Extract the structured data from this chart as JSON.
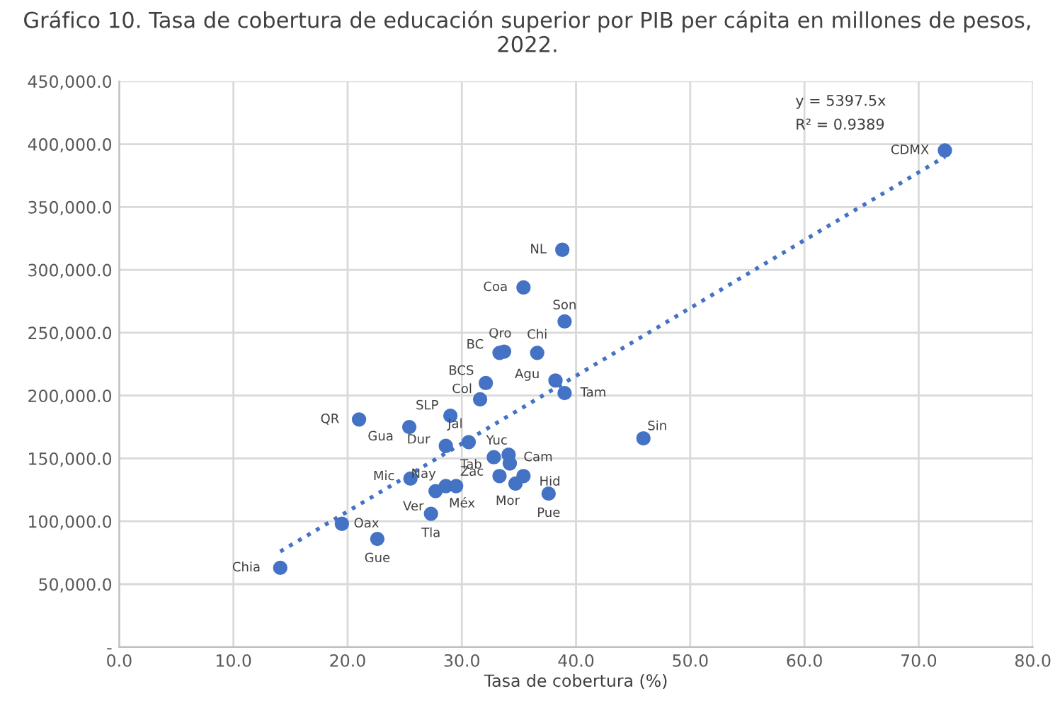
{
  "chart_data": {
    "type": "scatter",
    "title": "Gráfico 10. Tasa de cobertura de educación superior por PIB per cápita en millones de pesos, 2022.",
    "xlabel": "Tasa de cobertura (%)",
    "xlim": [
      0,
      80
    ],
    "xticks": [
      {
        "value": 0,
        "label": "0.0"
      },
      {
        "value": 10,
        "label": "10.0"
      },
      {
        "value": 20,
        "label": "20.0"
      },
      {
        "value": 30,
        "label": "30.0"
      },
      {
        "value": 40,
        "label": "40.0"
      },
      {
        "value": 50,
        "label": "50.0"
      },
      {
        "value": 60,
        "label": "60.0"
      },
      {
        "value": 70,
        "label": "70.0"
      },
      {
        "value": 80,
        "label": "80.0"
      }
    ],
    "ylim": [
      0,
      450000
    ],
    "yticks": [
      {
        "value": 0,
        "label": "-"
      },
      {
        "value": 50000,
        "label": "50,000.0"
      },
      {
        "value": 100000,
        "label": "100,000.0"
      },
      {
        "value": 150000,
        "label": "150,000.0"
      },
      {
        "value": 200000,
        "label": "200,000.0"
      },
      {
        "value": 250000,
        "label": "250,000.0"
      },
      {
        "value": 300000,
        "label": "300,000.0"
      },
      {
        "value": 350000,
        "label": "350,000.0"
      },
      {
        "value": 400000,
        "label": "400,000.0"
      },
      {
        "value": 450000,
        "label": "450,000.0"
      }
    ],
    "grid": true,
    "legend": false,
    "series": [
      {
        "color": "#4472c4",
        "marker": "circle",
        "x": [
          21.0,
          25.4,
          29.0,
          31.6,
          32.1,
          30.6,
          28.6,
          25.5,
          28.6,
          27.7,
          29.5,
          27.3,
          19.5,
          22.6,
          14.1,
          38.8,
          35.4,
          39.0,
          33.7,
          33.3,
          36.6,
          38.2,
          39.0,
          45.9,
          32.8,
          34.1,
          34.2,
          33.3,
          35.4,
          34.7,
          37.6,
          72.3
        ],
        "values": [
          181000,
          175000,
          184000,
          197000,
          210000,
          163000,
          160000,
          134000,
          128000,
          124000,
          128000,
          106000,
          98000,
          86000,
          63000,
          316000,
          286000,
          259000,
          235000,
          234000,
          234000,
          212000,
          202000,
          166000,
          151000,
          153000,
          146000,
          136000,
          136000,
          130000,
          122000,
          395000
        ]
      },
      {
        "type": "line",
        "color": "#4472c4",
        "line_style": "dotted",
        "x": [
          14.1,
          72.3
        ],
        "values": [
          76000,
          390000
        ]
      }
    ],
    "annotations": [
      {
        "text": "QR",
        "x": 21.0,
        "y": 181000
      },
      {
        "text": "Gua",
        "x": 25.4,
        "y": 175000
      },
      {
        "text": "SLP",
        "x": 29.0,
        "y": 184000
      },
      {
        "text": "Col",
        "x": 31.6,
        "y": 197000
      },
      {
        "text": "BCS",
        "x": 32.1,
        "y": 210000
      },
      {
        "text": "Jal",
        "x": 30.6,
        "y": 163000
      },
      {
        "text": "Dur",
        "x": 28.6,
        "y": 160000
      },
      {
        "text": "Mic",
        "x": 25.5,
        "y": 134000
      },
      {
        "text": "Nay",
        "x": 28.6,
        "y": 128000
      },
      {
        "text": "Ver",
        "x": 27.7,
        "y": 124000
      },
      {
        "text": "Méx",
        "x": 29.5,
        "y": 128000
      },
      {
        "text": "Tla",
        "x": 27.3,
        "y": 106000
      },
      {
        "text": "Oax",
        "x": 19.5,
        "y": 98000
      },
      {
        "text": "Gue",
        "x": 22.6,
        "y": 86000
      },
      {
        "text": "Chia",
        "x": 14.1,
        "y": 63000
      },
      {
        "text": "NL",
        "x": 38.8,
        "y": 316000
      },
      {
        "text": "Coa",
        "x": 35.4,
        "y": 286000
      },
      {
        "text": "Son",
        "x": 39.0,
        "y": 259000
      },
      {
        "text": "Qro",
        "x": 33.7,
        "y": 235000
      },
      {
        "text": "BC",
        "x": 33.3,
        "y": 234000
      },
      {
        "text": "Chi",
        "x": 36.6,
        "y": 234000
      },
      {
        "text": "Agu",
        "x": 38.2,
        "y": 212000
      },
      {
        "text": "Tam",
        "x": 39.0,
        "y": 202000
      },
      {
        "text": "Sin",
        "x": 45.9,
        "y": 166000
      },
      {
        "text": "Tab",
        "x": 32.8,
        "y": 151000
      },
      {
        "text": "Yuc",
        "x": 34.1,
        "y": 153000
      },
      {
        "text": "Cam",
        "x": 34.2,
        "y": 146000
      },
      {
        "text": "Zac",
        "x": 33.3,
        "y": 136000
      },
      {
        "text": "Hid",
        "x": 35.4,
        "y": 136000
      },
      {
        "text": "Mor",
        "x": 34.7,
        "y": 130000
      },
      {
        "text": "Pue",
        "x": 37.6,
        "y": 122000
      },
      {
        "text": "CDMX",
        "x": 72.3,
        "y": 395000
      },
      "y = 5397.5x",
      "R² = 0.9389"
    ]
  }
}
